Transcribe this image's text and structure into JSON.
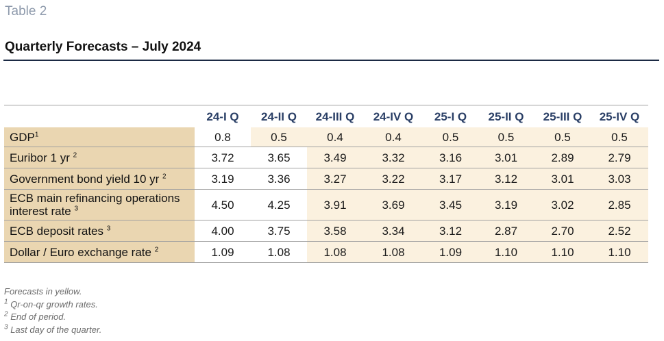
{
  "header": {
    "table_label": "Table 2",
    "title": "Quarterly Forecasts – July 2024"
  },
  "table": {
    "columns": [
      "24-I Q",
      "24-II Q",
      "24-III Q",
      "24-IV Q",
      "25-I Q",
      "25-II Q",
      "25-III Q",
      "25-IV Q"
    ],
    "rows": [
      {
        "label": "GDP",
        "sup": "1",
        "actual_cols": 1,
        "values": [
          "0.8",
          "0.5",
          "0.4",
          "0.4",
          "0.5",
          "0.5",
          "0.5",
          "0.5"
        ]
      },
      {
        "label": "Euribor 1 yr",
        "sup": "2",
        "actual_cols": 2,
        "values": [
          "3.72",
          "3.65",
          "3.49",
          "3.32",
          "3.16",
          "3.01",
          "2.89",
          "2.79"
        ]
      },
      {
        "label": "Government bond yield 10 yr",
        "sup": "2",
        "actual_cols": 2,
        "values": [
          "3.19",
          "3.36",
          "3.27",
          "3.22",
          "3.17",
          "3.12",
          "3.01",
          "3.03"
        ]
      },
      {
        "label": "ECB main refinancing operations interest rate",
        "sup": "3",
        "actual_cols": 2,
        "values": [
          "4.50",
          "4.25",
          "3.91",
          "3.69",
          "3.45",
          "3.19",
          "3.02",
          "2.85"
        ]
      },
      {
        "label": "ECB deposit rates",
        "sup": "3",
        "actual_cols": 2,
        "values": [
          "4.00",
          "3.75",
          "3.58",
          "3.34",
          "3.12",
          "2.87",
          "2.70",
          "2.52"
        ]
      },
      {
        "label": "Dollar / Euro exchange rate",
        "sup": "2",
        "actual_cols": 2,
        "values": [
          "1.09",
          "1.08",
          "1.08",
          "1.08",
          "1.09",
          "1.10",
          "1.10",
          "1.10"
        ]
      }
    ]
  },
  "notes": {
    "forecast_note": "Forecasts in yellow.",
    "footnotes": [
      {
        "mark": "1",
        "text": "Qr-on-qr growth rates."
      },
      {
        "mark": "2",
        "text": "End of period."
      },
      {
        "mark": "3",
        "text": "Last day of the quarter."
      }
    ]
  },
  "colors": {
    "row_label_bg": "#ead6b1",
    "forecast_bg": "#fbf1df",
    "header_text": "#2a3f66",
    "title_rule": "#1b2a44"
  }
}
